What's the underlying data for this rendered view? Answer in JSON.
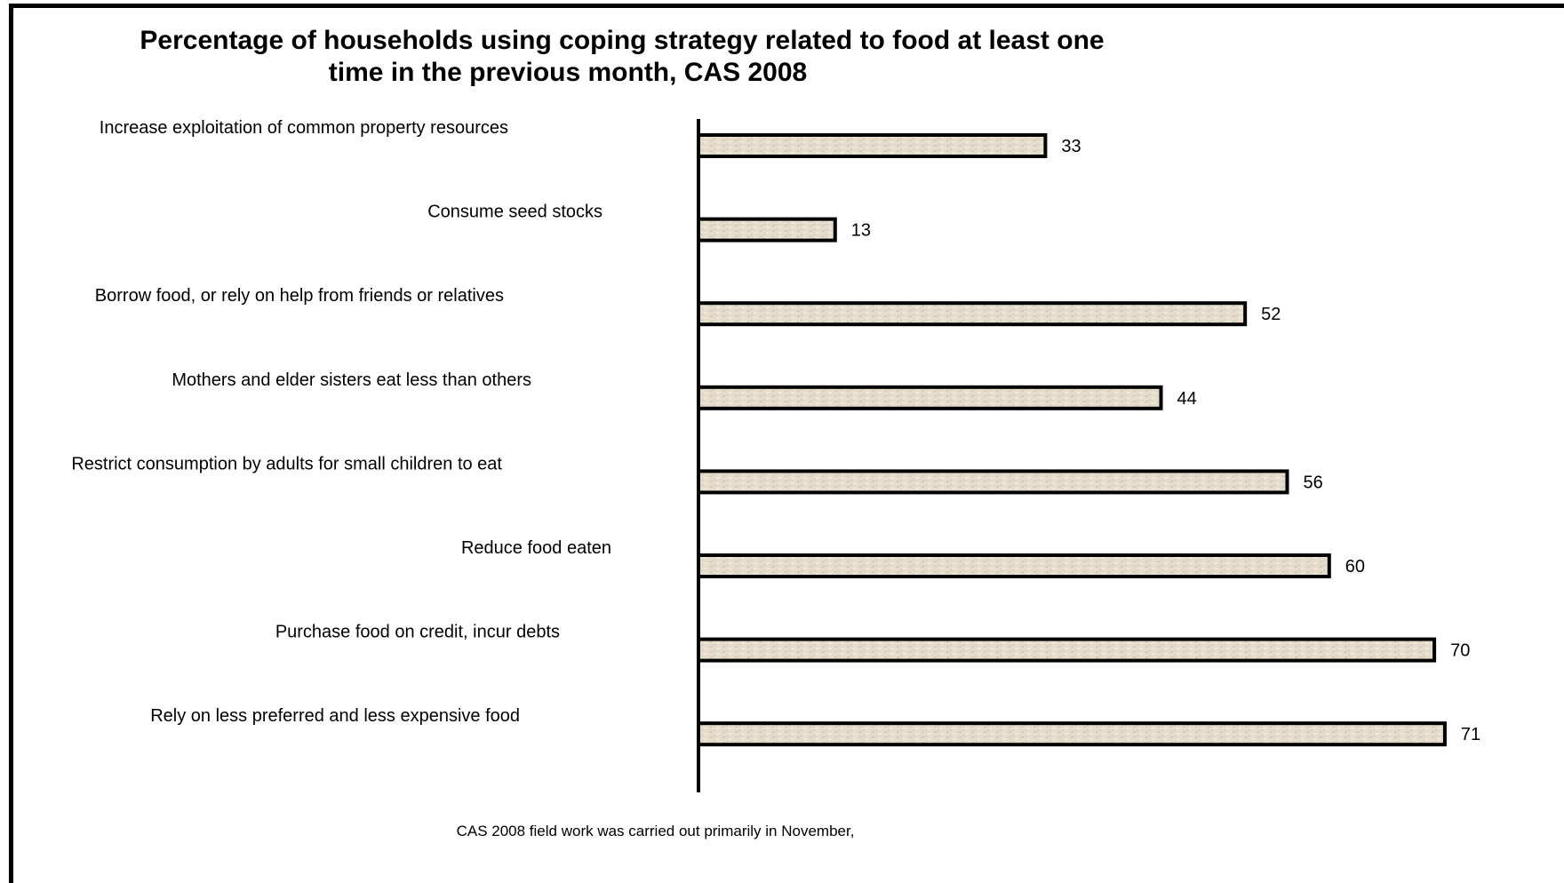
{
  "chart_data": {
    "type": "bar",
    "orientation": "horizontal",
    "title_line1": "Percentage of households using coping strategy related to food at least one",
    "title_line2": "time in the previous month, CAS 2008",
    "categories": [
      "Increase exploitation of common property resources",
      "Consume seed stocks",
      "Borrow food, or rely on help from friends or relatives",
      "Mothers and elder sisters eat less than others",
      "Restrict consumption by adults for small children to eat",
      "Reduce food eaten",
      "Purchase food on credit, incur debts",
      "Rely on less preferred and less expensive food"
    ],
    "values": [
      33,
      13,
      52,
      44,
      56,
      60,
      70,
      71
    ],
    "xlim": [
      0,
      80
    ],
    "grid": false,
    "legend": false,
    "bar_fill": "#e6dccb",
    "bar_stroke": "#000000",
    "footnote": "CAS 2008 field work was carried out primarily in November,"
  }
}
